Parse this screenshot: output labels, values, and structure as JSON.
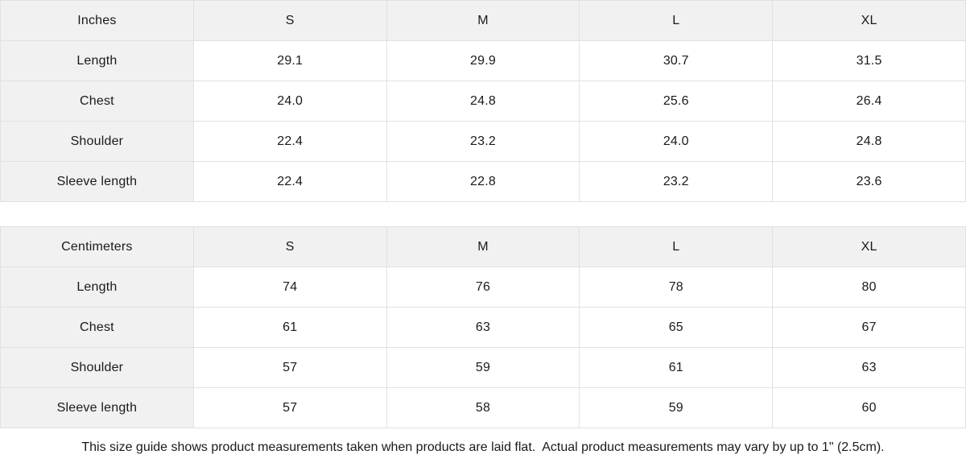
{
  "colors": {
    "header_background": "#f1f1f1",
    "row_label_background": "#f1f1f1",
    "cell_background": "#ffffff",
    "border": "#e1e1e1",
    "text": "#1a1a1a"
  },
  "inches_table": {
    "unit_label": "Inches",
    "size_headers": [
      "S",
      "M",
      "L",
      "XL"
    ],
    "rows": [
      {
        "label": "Length",
        "values": [
          "29.1",
          "29.9",
          "30.7",
          "31.5"
        ]
      },
      {
        "label": "Chest",
        "values": [
          "24.0",
          "24.8",
          "25.6",
          "26.4"
        ]
      },
      {
        "label": "Shoulder",
        "values": [
          "22.4",
          "23.2",
          "24.0",
          "24.8"
        ]
      },
      {
        "label": "Sleeve length",
        "values": [
          "22.4",
          "22.8",
          "23.2",
          "23.6"
        ]
      }
    ]
  },
  "centimeters_table": {
    "unit_label": "Centimeters",
    "size_headers": [
      "S",
      "M",
      "L",
      "XL"
    ],
    "rows": [
      {
        "label": "Length",
        "values": [
          "74",
          "76",
          "78",
          "80"
        ]
      },
      {
        "label": "Chest",
        "values": [
          "61",
          "63",
          "65",
          "67"
        ]
      },
      {
        "label": "Shoulder",
        "values": [
          "57",
          "59",
          "61",
          "63"
        ]
      },
      {
        "label": "Sleeve length",
        "values": [
          "57",
          "58",
          "59",
          "60"
        ]
      }
    ]
  },
  "footnote": "This size guide shows product measurements taken when products are laid flat.  Actual product measurements may vary by up to 1\" (2.5cm)."
}
